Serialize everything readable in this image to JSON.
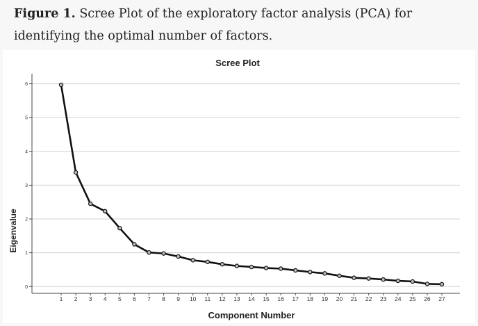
{
  "caption": {
    "label": "Figure 1.",
    "text": " Scree Plot of the exploratory factor analysis (PCA) for identifying the optimal number of factors."
  },
  "chart_data": {
    "type": "line",
    "title": "Scree Plot",
    "xlabel": "Component Number",
    "ylabel": "Eigenvalue",
    "x": [
      1,
      2,
      3,
      4,
      5,
      6,
      7,
      8,
      9,
      10,
      11,
      12,
      13,
      14,
      15,
      16,
      17,
      18,
      19,
      20,
      21,
      22,
      23,
      24,
      25,
      26,
      27
    ],
    "values": [
      5.97,
      3.38,
      2.45,
      2.23,
      1.73,
      1.25,
      1.01,
      0.98,
      0.89,
      0.78,
      0.73,
      0.66,
      0.61,
      0.58,
      0.55,
      0.53,
      0.48,
      0.43,
      0.39,
      0.32,
      0.26,
      0.24,
      0.21,
      0.17,
      0.15,
      0.08,
      0.07
    ],
    "ylim": [
      -0.2,
      6.3
    ],
    "yticks": [
      "0",
      "1",
      "2",
      "3",
      "4",
      "5",
      "6"
    ],
    "grid": true,
    "colors": {
      "line": "#111111",
      "marker_fill": "#bdbdbd",
      "grid": "#d0d0d0"
    }
  }
}
